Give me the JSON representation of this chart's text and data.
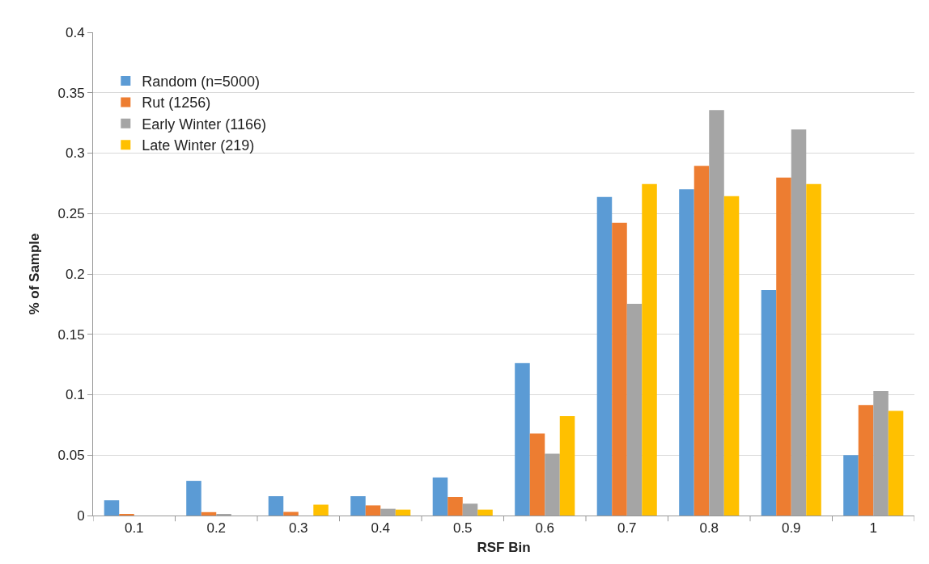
{
  "chart_data": {
    "type": "bar",
    "xlabel": "RSF Bin",
    "ylabel": "% of Sample",
    "categories": [
      "0.1",
      "0.2",
      "0.3",
      "0.4",
      "0.5",
      "0.6",
      "0.7",
      "0.8",
      "0.9",
      "1"
    ],
    "series": [
      {
        "name": "Random (n=5000)",
        "color": "#5b9bd5",
        "values": [
          0.0126,
          0.0287,
          0.016,
          0.016,
          0.0315,
          0.1263,
          0.2637,
          0.27,
          0.1867,
          0.05
        ]
      },
      {
        "name": "Rut (1256)",
        "color": "#ed7d31",
        "values": [
          0.001,
          0.0028,
          0.003,
          0.0084,
          0.0154,
          0.0679,
          0.2423,
          0.2895,
          0.2798,
          0.0914
        ]
      },
      {
        "name": "Early Winter (1166)",
        "color": "#a5a5a5",
        "values": [
          0,
          0.001,
          0,
          0.0056,
          0.0098,
          0.0512,
          0.1753,
          0.3357,
          0.3196,
          0.103
        ]
      },
      {
        "name": "Late Winter (219)",
        "color": "#ffc000",
        "values": [
          0,
          0,
          0.009,
          0.0049,
          0.0049,
          0.0823,
          0.2744,
          0.2644,
          0.2744,
          0.0867
        ]
      }
    ],
    "ylim": [
      0,
      0.4
    ],
    "yticks": [
      0,
      0.05,
      0.1,
      0.15,
      0.2,
      0.25,
      0.3,
      0.35,
      0.4
    ],
    "grid": "y",
    "legend": "top left"
  }
}
